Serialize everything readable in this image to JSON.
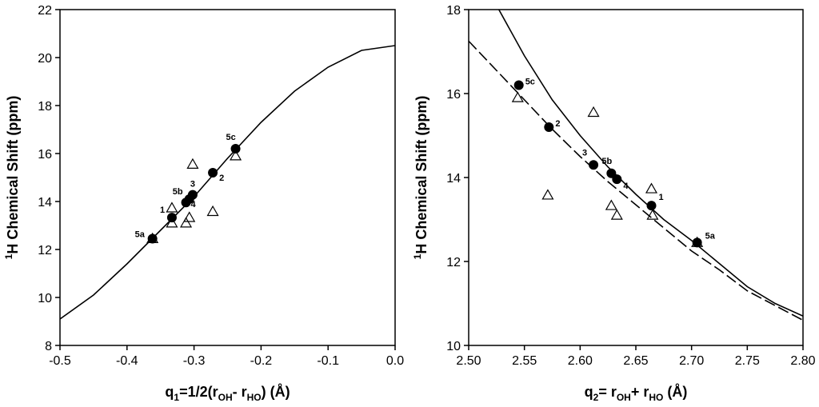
{
  "chart_data": [
    {
      "type": "scatter",
      "xlabel_parts": [
        "q",
        "1",
        "=1/2(r",
        "OH",
        "- r",
        "HO",
        ") (Å)"
      ],
      "ylabel_parts": [
        "1",
        "H Chemical Shift (ppm)"
      ],
      "xlim": [
        -0.5,
        0.0
      ],
      "ylim": [
        8,
        22
      ],
      "x_ticks": [
        -0.5,
        -0.4,
        -0.3,
        -0.2,
        -0.1,
        0.0
      ],
      "x_tick_labels": [
        "-0.5",
        "-0.4",
        "-0.3",
        "-0.2",
        "-0.1",
        "0.0"
      ],
      "y_ticks": [
        8,
        10,
        12,
        14,
        16,
        18,
        20,
        22
      ],
      "y_tick_labels": [
        "8",
        "10",
        "12",
        "14",
        "16",
        "18",
        "20",
        "22"
      ],
      "curves": [
        {
          "name": "fit",
          "style": "solid",
          "x": [
            -0.5,
            -0.45,
            -0.4,
            -0.35,
            -0.3,
            -0.25,
            -0.2,
            -0.15,
            -0.1,
            -0.05,
            0.0
          ],
          "y": [
            9.1,
            10.1,
            11.4,
            12.8,
            14.2,
            15.8,
            17.3,
            18.6,
            19.6,
            20.3,
            20.5
          ]
        }
      ],
      "series": [
        {
          "name": "filled circles",
          "marker": "circle-filled",
          "points": [
            {
              "x": -0.362,
              "y": 12.45,
              "label": "5a"
            },
            {
              "x": -0.333,
              "y": 13.33,
              "label": "1"
            },
            {
              "x": -0.312,
              "y": 13.96,
              "label": "4"
            },
            {
              "x": -0.307,
              "y": 14.1,
              "label": "5b"
            },
            {
              "x": -0.302,
              "y": 14.28,
              "label": "3"
            },
            {
              "x": -0.272,
              "y": 15.2,
              "label": "2"
            },
            {
              "x": -0.238,
              "y": 16.2,
              "label": "5c"
            }
          ]
        },
        {
          "name": "open triangles",
          "marker": "triangle-open",
          "points": [
            {
              "x": -0.362,
              "y": 12.45
            },
            {
              "x": -0.333,
              "y": 13.1
            },
            {
              "x": -0.333,
              "y": 13.73
            },
            {
              "x": -0.312,
              "y": 13.1
            },
            {
              "x": -0.307,
              "y": 13.33
            },
            {
              "x": -0.302,
              "y": 15.55
            },
            {
              "x": -0.272,
              "y": 13.58
            },
            {
              "x": -0.238,
              "y": 15.9
            }
          ]
        }
      ]
    },
    {
      "type": "scatter",
      "xlabel_parts": [
        "q",
        "2",
        "= r",
        "OH",
        "+ r",
        "HO",
        " (Å)"
      ],
      "ylabel_parts": [
        "1",
        "H Chemical Shift (ppm)"
      ],
      "xlim": [
        2.5,
        2.8
      ],
      "ylim": [
        10,
        18
      ],
      "x_ticks": [
        2.5,
        2.55,
        2.6,
        2.65,
        2.7,
        2.75,
        2.8
      ],
      "x_tick_labels": [
        "2.50",
        "2.55",
        "2.60",
        "2.65",
        "2.70",
        "2.75",
        "2.80"
      ],
      "y_ticks": [
        10,
        12,
        14,
        16,
        18
      ],
      "y_tick_labels": [
        "10",
        "12",
        "14",
        "16",
        "18"
      ],
      "curves": [
        {
          "name": "solid fit",
          "style": "solid",
          "x": [
            2.515,
            2.525,
            2.55,
            2.575,
            2.6,
            2.625,
            2.65,
            2.675,
            2.7,
            2.725,
            2.75,
            2.775,
            2.8
          ],
          "y": [
            18.8,
            18.1,
            16.9,
            15.85,
            15.0,
            14.25,
            13.6,
            13.0,
            12.5,
            11.95,
            11.4,
            11.0,
            10.7
          ]
        },
        {
          "name": "dashed fit",
          "style": "dashed",
          "x": [
            2.5,
            2.525,
            2.55,
            2.575,
            2.6,
            2.625,
            2.65,
            2.675,
            2.7,
            2.725,
            2.75,
            2.775,
            2.8
          ],
          "y": [
            17.25,
            16.55,
            15.85,
            15.15,
            14.5,
            13.9,
            13.35,
            12.8,
            12.25,
            11.8,
            11.3,
            10.95,
            10.6
          ]
        }
      ],
      "series": [
        {
          "name": "filled circles",
          "marker": "circle-filled",
          "points": [
            {
              "x": 2.545,
              "y": 16.2,
              "label": "5c"
            },
            {
              "x": 2.572,
              "y": 15.2,
              "label": "2"
            },
            {
              "x": 2.612,
              "y": 14.3,
              "label": "3"
            },
            {
              "x": 2.628,
              "y": 14.1,
              "label": "5b"
            },
            {
              "x": 2.633,
              "y": 13.96,
              "label": "4"
            },
            {
              "x": 2.664,
              "y": 13.33,
              "label": "1"
            },
            {
              "x": 2.705,
              "y": 12.45,
              "label": "5a"
            }
          ]
        },
        {
          "name": "open triangles",
          "marker": "triangle-open",
          "points": [
            {
              "x": 2.544,
              "y": 15.9
            },
            {
              "x": 2.571,
              "y": 13.58
            },
            {
              "x": 2.612,
              "y": 15.55
            },
            {
              "x": 2.628,
              "y": 13.33
            },
            {
              "x": 2.633,
              "y": 13.1
            },
            {
              "x": 2.664,
              "y": 13.73
            },
            {
              "x": 2.665,
              "y": 13.1
            },
            {
              "x": 2.705,
              "y": 12.45
            }
          ]
        }
      ]
    }
  ]
}
